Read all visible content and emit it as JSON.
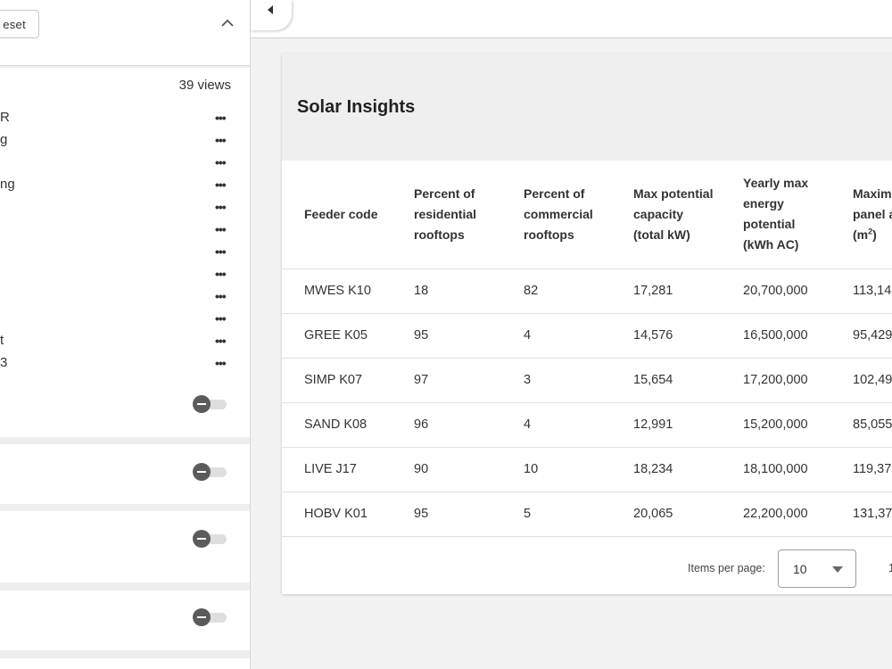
{
  "sidebar": {
    "reset_label": "eset",
    "views_count": "39 views",
    "views": [
      {
        "label": "R"
      },
      {
        "label": "g"
      },
      {
        "label": ""
      },
      {
        "label": "ng"
      },
      {
        "label": ""
      },
      {
        "label": ""
      },
      {
        "label": ""
      },
      {
        "label": ""
      },
      {
        "label": ""
      },
      {
        "label": ""
      },
      {
        "label": "t"
      },
      {
        "label": "3"
      }
    ],
    "view_menu_glyph": "•••",
    "layer_toggles": [
      {
        "state": "off"
      },
      {
        "state": "off"
      },
      {
        "state": "off"
      },
      {
        "state": "off"
      }
    ]
  },
  "panel": {
    "title": "Solar Insights",
    "columns": [
      {
        "label": "Feeder code",
        "unit": ""
      },
      {
        "label": "Percent of residential rooftops",
        "unit": ""
      },
      {
        "label": "Percent of commercial rooftops",
        "unit": ""
      },
      {
        "label": "Max potential capacity",
        "unit": "(total kW)"
      },
      {
        "label": "Yearly max energy potential",
        "unit": "(kWh AC)"
      },
      {
        "label": "Maxim panel a",
        "unit": "(m",
        "unit_sup": "2",
        "unit_end": ")"
      }
    ],
    "rows": [
      [
        "MWES K10",
        "18",
        "82",
        "17,281",
        "20,700,000",
        "113,14"
      ],
      [
        "GREE K05",
        "95",
        "4",
        "14,576",
        "16,500,000",
        "95,429"
      ],
      [
        "SIMP K07",
        "97",
        "3",
        "15,654",
        "17,200,000",
        "102,49"
      ],
      [
        "SAND K08",
        "96",
        "4",
        "12,991",
        "15,200,000",
        "85,055"
      ],
      [
        "LIVE J17",
        "90",
        "10",
        "18,234",
        "18,100,000",
        "119,37"
      ],
      [
        "HOBV K01",
        "95",
        "5",
        "20,065",
        "22,200,000",
        "131,37"
      ]
    ],
    "paginator": {
      "items_per_page_label": "Items per page:",
      "items_per_page_value": "10",
      "range_label": "1"
    }
  }
}
